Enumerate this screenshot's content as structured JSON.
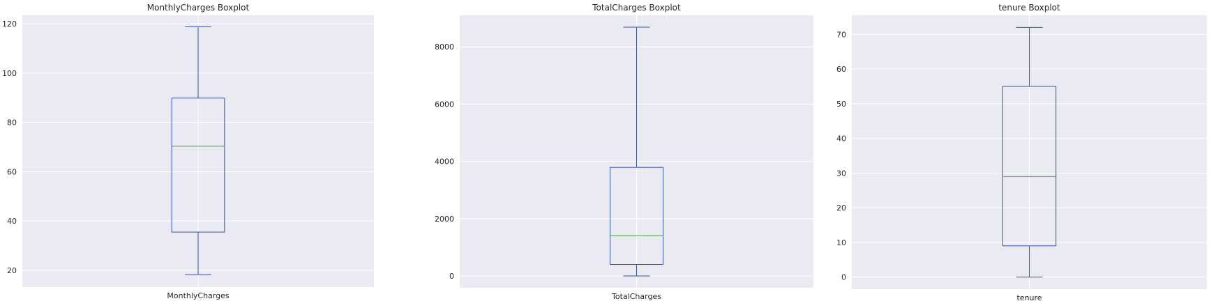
{
  "colors": {
    "background": "#eaeaf2",
    "grid": "#ffffff",
    "box": "#3a52a8",
    "median": "#4c9a4c",
    "text": "#262626"
  },
  "chart_data": [
    {
      "type": "box",
      "title": "MonthlyCharges Boxplot",
      "category": "MonthlyCharges",
      "ylim": [
        13.2,
        123.4
      ],
      "yticks": [
        20,
        40,
        60,
        80,
        100,
        120
      ],
      "grid": true,
      "stats": {
        "whisker_low": 18.25,
        "q1": 35.5,
        "median": 70.35,
        "q3": 89.85,
        "whisker_high": 118.75
      }
    },
    {
      "type": "box",
      "title": "TotalCharges Boxplot",
      "category": "TotalCharges",
      "ylim": [
        -415,
        9100
      ],
      "yticks": [
        0,
        2000,
        4000,
        6000,
        8000
      ],
      "grid": true,
      "stats": {
        "whisker_low": 0,
        "q1": 400,
        "median": 1400,
        "q3": 3790,
        "whisker_high": 8685
      }
    },
    {
      "type": "box",
      "title": "tenure Boxplot",
      "category": "tenure",
      "ylim": [
        -3.5,
        75.5
      ],
      "yticks": [
        0,
        10,
        20,
        30,
        40,
        50,
        60,
        70
      ],
      "grid": true,
      "stats": {
        "whisker_low": 0,
        "q1": 9,
        "median": 29,
        "q3": 55,
        "whisker_high": 72
      }
    }
  ]
}
